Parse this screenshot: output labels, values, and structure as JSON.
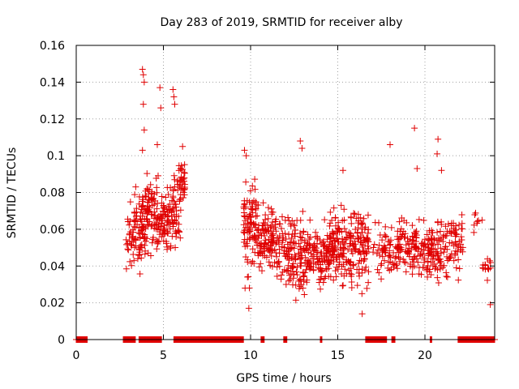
{
  "chart_data": {
    "type": "scatter",
    "title": "Day 283 of 2019, SRMTID for receiver alby",
    "xlabel": "GPS time / hours",
    "ylabel": "SRMTID / TECUs",
    "xlim": [
      0,
      24
    ],
    "ylim": [
      0,
      0.16
    ],
    "x_ticks": [
      0,
      5,
      10,
      15,
      20
    ],
    "x_tick_labels": [
      "0",
      "5",
      "10",
      "15",
      "20"
    ],
    "y_ticks": [
      0,
      0.02,
      0.04,
      0.06,
      0.08,
      0.1,
      0.12,
      0.14,
      0.16
    ],
    "y_tick_labels": [
      "0",
      "0.02",
      "0.04",
      "0.06",
      "0.08",
      "0.1",
      "0.12",
      "0.14",
      "0.16"
    ],
    "grid": true,
    "marker": "plus",
    "marker_color": "#e00000",
    "series": [
      {
        "name": "SRMTID",
        "clusters": [
          {
            "x_range": [
              2.85,
              3.35
            ],
            "y_range": [
              0.03,
              0.08
            ],
            "count": 30
          },
          {
            "x_range": [
              3.3,
              3.95
            ],
            "y_range": [
              0.03,
              0.09
            ],
            "count": 70
          },
          {
            "x_range": [
              3.95,
              4.7
            ],
            "y_range": [
              0.04,
              0.095
            ],
            "count": 80
          },
          {
            "x_range": [
              4.7,
              5.3
            ],
            "y_range": [
              0.04,
              0.085
            ],
            "count": 60
          },
          {
            "x_range": [
              5.3,
              6.0
            ],
            "y_range": [
              0.04,
              0.1
            ],
            "count": 60
          },
          {
            "x_range": [
              5.9,
              6.25
            ],
            "y_range": [
              0.07,
              0.1
            ],
            "count": 30
          },
          {
            "x_range": [
              9.6,
              10.4
            ],
            "y_range": [
              0.02,
              0.1
            ],
            "count": 90
          },
          {
            "x_range": [
              10.4,
              11.5
            ],
            "y_range": [
              0.03,
              0.08
            ],
            "count": 100
          },
          {
            "x_range": [
              11.5,
              13.0
            ],
            "y_range": [
              0.02,
              0.075
            ],
            "count": 130
          },
          {
            "x_range": [
              13.0,
              14.5
            ],
            "y_range": [
              0.02,
              0.07
            ],
            "count": 130
          },
          {
            "x_range": [
              14.5,
              16.8
            ],
            "y_range": [
              0.02,
              0.08
            ],
            "count": 220
          },
          {
            "x_range": [
              17.0,
              18.5
            ],
            "y_range": [
              0.025,
              0.07
            ],
            "count": 70
          },
          {
            "x_range": [
              18.5,
              20.0
            ],
            "y_range": [
              0.03,
              0.07
            ],
            "count": 100
          },
          {
            "x_range": [
              20.0,
              21.3
            ],
            "y_range": [
              0.025,
              0.07
            ],
            "count": 100
          },
          {
            "x_range": [
              21.3,
              22.2
            ],
            "y_range": [
              0.03,
              0.075
            ],
            "count": 50
          },
          {
            "x_range": [
              22.8,
              23.3
            ],
            "y_range": [
              0.05,
              0.08
            ],
            "count": 8
          },
          {
            "x_range": [
              23.3,
              23.8
            ],
            "y_range": [
              0.03,
              0.05
            ],
            "count": 15
          }
        ],
        "outliers": [
          {
            "x": 3.8,
            "y": 0.147
          },
          {
            "x": 3.85,
            "y": 0.144
          },
          {
            "x": 3.9,
            "y": 0.14
          },
          {
            "x": 3.85,
            "y": 0.128
          },
          {
            "x": 3.9,
            "y": 0.114
          },
          {
            "x": 3.8,
            "y": 0.103
          },
          {
            "x": 4.65,
            "y": 0.106
          },
          {
            "x": 4.8,
            "y": 0.137
          },
          {
            "x": 4.85,
            "y": 0.126
          },
          {
            "x": 5.55,
            "y": 0.136
          },
          {
            "x": 5.6,
            "y": 0.132
          },
          {
            "x": 5.65,
            "y": 0.128
          },
          {
            "x": 6.1,
            "y": 0.105
          },
          {
            "x": 9.65,
            "y": 0.103
          },
          {
            "x": 9.75,
            "y": 0.1
          },
          {
            "x": 12.85,
            "y": 0.108
          },
          {
            "x": 12.95,
            "y": 0.104
          },
          {
            "x": 15.3,
            "y": 0.092
          },
          {
            "x": 18.0,
            "y": 0.106
          },
          {
            "x": 19.4,
            "y": 0.115
          },
          {
            "x": 19.55,
            "y": 0.093
          },
          {
            "x": 20.75,
            "y": 0.109
          },
          {
            "x": 20.7,
            "y": 0.101
          },
          {
            "x": 20.95,
            "y": 0.092
          },
          {
            "x": 9.9,
            "y": 0.017
          },
          {
            "x": 16.4,
            "y": 0.014
          },
          {
            "x": 23.75,
            "y": 0.019
          }
        ],
        "zero_ranges": [
          [
            0.0,
            0.65
          ],
          [
            2.7,
            3.4
          ],
          [
            3.6,
            4.9
          ],
          [
            5.6,
            9.6
          ],
          [
            10.6,
            10.8
          ],
          [
            11.9,
            12.1
          ],
          [
            14.0,
            14.1
          ],
          [
            16.6,
            17.8
          ],
          [
            18.1,
            18.3
          ],
          [
            20.3,
            20.4
          ],
          [
            21.9,
            24.0
          ]
        ]
      }
    ]
  }
}
